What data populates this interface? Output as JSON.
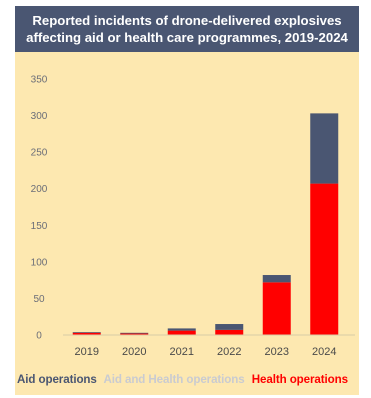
{
  "chart_data": {
    "type": "bar",
    "stacked": true,
    "title": "Reported incidents of drone-delivered explosives\naffecting aid or health care programmes, 2019-2024",
    "categories": [
      "2019",
      "2020",
      "2021",
      "2022",
      "2023",
      "2024"
    ],
    "series": [
      {
        "name": "Health operations",
        "color": "#ff0000",
        "values": [
          3,
          2,
          6,
          7,
          72,
          207
        ]
      },
      {
        "name": "Aid and Health operations",
        "color": "#bcbfc6",
        "values": [
          0,
          0,
          0,
          0,
          0,
          0
        ]
      },
      {
        "name": "Aid operations",
        "color": "#4a5672",
        "values": [
          1,
          1,
          3,
          8,
          10,
          96
        ]
      }
    ],
    "legend_order": [
      "Aid operations",
      "Aid and Health operations",
      "Health operations"
    ],
    "yticks": [
      "0",
      "50",
      "100",
      "150",
      "200",
      "250",
      "300",
      "350"
    ],
    "ylim": [
      0,
      350
    ],
    "xlabel": "",
    "ylabel": "",
    "grid": false,
    "legend_position": "bottom"
  }
}
